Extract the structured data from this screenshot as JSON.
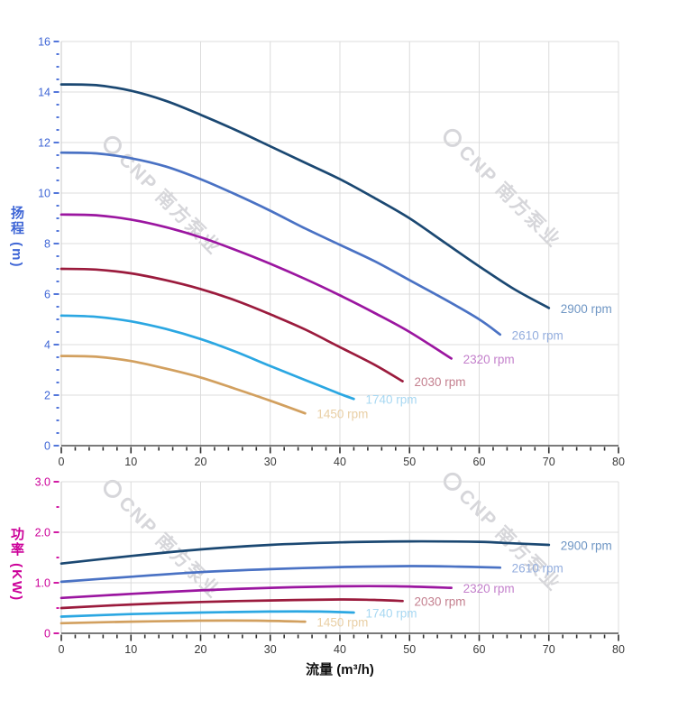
{
  "watermark": {
    "text": "CNP 南方泵业",
    "color": "#d6d6da"
  },
  "chart_data": [
    {
      "type": "line",
      "id": "head",
      "ylabel": "扬程 (m)",
      "axis_color": "#3f66d6",
      "x_tick_color": "#3b3b3b",
      "xlim": [
        0,
        80
      ],
      "ylim": [
        0,
        16
      ],
      "x_major": 10,
      "x_minor": 2,
      "y_major": 2,
      "y_minor": 0.5,
      "x_tick_labels": [
        "0",
        "10",
        "20",
        "30",
        "40",
        "50",
        "60",
        "70",
        "80"
      ],
      "y_tick_labels": [
        "0",
        "2",
        "4",
        "6",
        "8",
        "10",
        "12",
        "14",
        "16"
      ],
      "grid": true,
      "legend_position": "at-line-ends",
      "series": [
        {
          "name": "2900 rpm",
          "color": "#1b4872",
          "label_color": "#6f96c4",
          "points": [
            [
              0,
              14.3
            ],
            [
              5,
              14.27
            ],
            [
              10,
              14.05
            ],
            [
              15,
              13.65
            ],
            [
              20,
              13.1
            ],
            [
              25,
              12.5
            ],
            [
              30,
              11.85
            ],
            [
              35,
              11.2
            ],
            [
              40,
              10.55
            ],
            [
              45,
              9.8
            ],
            [
              50,
              9.0
            ],
            [
              55,
              8.05
            ],
            [
              60,
              7.1
            ],
            [
              65,
              6.2
            ],
            [
              70,
              5.45
            ]
          ]
        },
        {
          "name": "2610 rpm",
          "color": "#4a72c4",
          "label_color": "#94aede",
          "points": [
            [
              0,
              11.6
            ],
            [
              5,
              11.57
            ],
            [
              10,
              11.38
            ],
            [
              15,
              11.05
            ],
            [
              20,
              10.55
            ],
            [
              25,
              9.95
            ],
            [
              30,
              9.3
            ],
            [
              35,
              8.6
            ],
            [
              40,
              7.95
            ],
            [
              45,
              7.3
            ],
            [
              50,
              6.55
            ],
            [
              55,
              5.8
            ],
            [
              60,
              5.0
            ],
            [
              63,
              4.4
            ]
          ]
        },
        {
          "name": "2320 rpm",
          "color": "#9b16a0",
          "label_color": "#c37fcb",
          "points": [
            [
              0,
              9.15
            ],
            [
              5,
              9.12
            ],
            [
              10,
              8.95
            ],
            [
              15,
              8.65
            ],
            [
              20,
              8.25
            ],
            [
              25,
              7.75
            ],
            [
              30,
              7.2
            ],
            [
              35,
              6.6
            ],
            [
              40,
              5.95
            ],
            [
              45,
              5.25
            ],
            [
              50,
              4.5
            ],
            [
              56,
              3.45
            ]
          ]
        },
        {
          "name": "2030 rpm",
          "color": "#9b1b3d",
          "label_color": "#c4808f",
          "points": [
            [
              0,
              7.0
            ],
            [
              5,
              6.97
            ],
            [
              10,
              6.82
            ],
            [
              15,
              6.55
            ],
            [
              20,
              6.2
            ],
            [
              25,
              5.75
            ],
            [
              30,
              5.2
            ],
            [
              35,
              4.6
            ],
            [
              40,
              3.9
            ],
            [
              45,
              3.2
            ],
            [
              49,
              2.55
            ]
          ]
        },
        {
          "name": "1740 rpm",
          "color": "#2ba7e2",
          "label_color": "#a8d8f2",
          "points": [
            [
              0,
              5.15
            ],
            [
              5,
              5.1
            ],
            [
              10,
              4.92
            ],
            [
              15,
              4.62
            ],
            [
              20,
              4.22
            ],
            [
              25,
              3.72
            ],
            [
              30,
              3.15
            ],
            [
              35,
              2.6
            ],
            [
              40,
              2.05
            ],
            [
              42,
              1.85
            ]
          ]
        },
        {
          "name": "1450 rpm",
          "color": "#d2a05f",
          "label_color": "#e9cfa5",
          "points": [
            [
              0,
              3.55
            ],
            [
              5,
              3.52
            ],
            [
              10,
              3.35
            ],
            [
              15,
              3.05
            ],
            [
              20,
              2.7
            ],
            [
              25,
              2.25
            ],
            [
              30,
              1.78
            ],
            [
              35,
              1.28
            ]
          ]
        }
      ]
    },
    {
      "type": "line",
      "id": "power",
      "ylabel": "功率 (KW)",
      "xlabel": "流量 (m³/h)",
      "axis_color": "#cc0099",
      "x_tick_color": "#3b3b3b",
      "xlim": [
        0,
        80
      ],
      "ylim": [
        0,
        3
      ],
      "x_major": 10,
      "x_minor": 2,
      "y_major": 1,
      "y_minor": 0.5,
      "x_tick_labels": [
        "0",
        "10",
        "20",
        "30",
        "40",
        "50",
        "60",
        "70",
        "80"
      ],
      "y_tick_labels": [
        "0",
        "1.0",
        "2.0",
        "3.0"
      ],
      "grid": true,
      "legend_position": "at-line-ends",
      "series": [
        {
          "name": "2900 rpm",
          "color": "#1b4872",
          "label_color": "#6f96c4",
          "points": [
            [
              0,
              1.38
            ],
            [
              10,
              1.53
            ],
            [
              20,
              1.66
            ],
            [
              30,
              1.75
            ],
            [
              40,
              1.8
            ],
            [
              50,
              1.82
            ],
            [
              60,
              1.81
            ],
            [
              65,
              1.78
            ],
            [
              70,
              1.75
            ]
          ]
        },
        {
          "name": "2610 rpm",
          "color": "#4a72c4",
          "label_color": "#94aede",
          "points": [
            [
              0,
              1.02
            ],
            [
              10,
              1.12
            ],
            [
              20,
              1.21
            ],
            [
              30,
              1.27
            ],
            [
              40,
              1.31
            ],
            [
              50,
              1.33
            ],
            [
              57,
              1.32
            ],
            [
              63,
              1.3
            ]
          ]
        },
        {
          "name": "2320 rpm",
          "color": "#9b16a0",
          "label_color": "#c37fcb",
          "points": [
            [
              0,
              0.7
            ],
            [
              10,
              0.78
            ],
            [
              20,
              0.85
            ],
            [
              30,
              0.9
            ],
            [
              40,
              0.93
            ],
            [
              48,
              0.93
            ],
            [
              56,
              0.9
            ]
          ]
        },
        {
          "name": "2030 rpm",
          "color": "#9b1b3d",
          "label_color": "#c4808f",
          "points": [
            [
              0,
              0.5
            ],
            [
              10,
              0.57
            ],
            [
              20,
              0.62
            ],
            [
              30,
              0.65
            ],
            [
              40,
              0.67
            ],
            [
              45,
              0.66
            ],
            [
              49,
              0.64
            ]
          ]
        },
        {
          "name": "1740 rpm",
          "color": "#2ba7e2",
          "label_color": "#a8d8f2",
          "points": [
            [
              0,
              0.33
            ],
            [
              10,
              0.38
            ],
            [
              20,
              0.41
            ],
            [
              30,
              0.43
            ],
            [
              37,
              0.43
            ],
            [
              42,
              0.41
            ]
          ]
        },
        {
          "name": "1450 rpm",
          "color": "#d2a05f",
          "label_color": "#e9cfa5",
          "points": [
            [
              0,
              0.2
            ],
            [
              10,
              0.23
            ],
            [
              20,
              0.25
            ],
            [
              28,
              0.25
            ],
            [
              35,
              0.23
            ]
          ]
        }
      ]
    }
  ]
}
